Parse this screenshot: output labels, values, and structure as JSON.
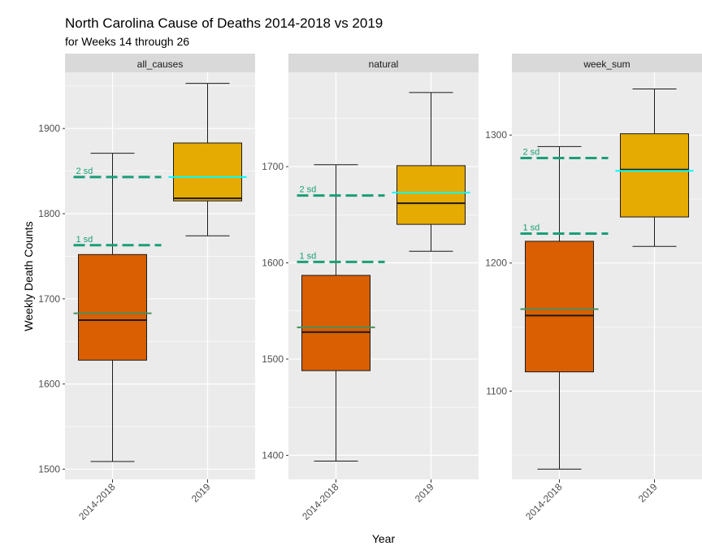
{
  "chart_data": {
    "type": "box",
    "title": "North Carolina Cause of Deaths  2014-2018 vs 2019",
    "subtitle": "for Weeks 14 through 26",
    "xlabel": "Year",
    "ylabel": "Weekly Death Counts",
    "categories": [
      "2014-2018",
      "2019"
    ],
    "colors": {
      "panel_bg": "#ebebeb",
      "strip_bg": "#d9d9d9",
      "grid": "#ffffff",
      "box_2014_2018": "#d95f02",
      "box_2019": "#e6ab02",
      "sd_line": "#1b9e77",
      "mean_2014_2018": "#4a8f5c",
      "mean_2019": "#00ffff",
      "median": "#1a1a1a"
    },
    "sd_labels": {
      "one": "1 sd",
      "two": "2 sd"
    },
    "panels": [
      {
        "name": "all_causes",
        "ylim": [
          1488,
          1966
        ],
        "yticks": [
          1500,
          1600,
          1700,
          1800,
          1900
        ],
        "boxes": [
          {
            "category": "2014-2018",
            "min": 1509,
            "q1": 1628,
            "median": 1675,
            "q3": 1752,
            "max": 1871,
            "mean": 1683
          },
          {
            "category": "2019",
            "min": 1774,
            "q1": 1815,
            "median": 1818,
            "q3": 1883,
            "max": 1953,
            "mean": 1843
          }
        ],
        "sd1": 1763,
        "sd2": 1843
      },
      {
        "name": "natural",
        "ylim": [
          1375,
          1798
        ],
        "yticks": [
          1400,
          1500,
          1600,
          1700
        ],
        "boxes": [
          {
            "category": "2014-2018",
            "min": 1394,
            "q1": 1488,
            "median": 1528,
            "q3": 1587,
            "max": 1702,
            "mean": 1533
          },
          {
            "category": "2019",
            "min": 1612,
            "q1": 1640,
            "median": 1662,
            "q3": 1701,
            "max": 1777,
            "mean": 1673
          }
        ],
        "sd1": 1601,
        "sd2": 1670
      },
      {
        "name": "week_sum",
        "ylim": [
          1031,
          1349
        ],
        "yticks": [
          1100,
          1200,
          1300
        ],
        "boxes": [
          {
            "category": "2014-2018",
            "min": 1039,
            "q1": 1115,
            "median": 1159,
            "q3": 1217,
            "max": 1291,
            "mean": 1164
          },
          {
            "category": "2019",
            "min": 1213,
            "q1": 1236,
            "median": 1273,
            "q3": 1301,
            "max": 1336,
            "mean": 1272
          }
        ],
        "sd1": 1223,
        "sd2": 1282
      }
    ]
  }
}
